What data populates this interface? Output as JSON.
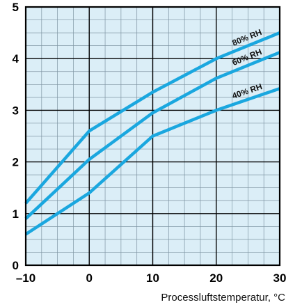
{
  "chart_data": {
    "type": "line",
    "title": "",
    "xlabel": "Processluftstemperatur, °C",
    "ylabel": "",
    "xlim": [
      -10,
      30
    ],
    "ylim": [
      0,
      5
    ],
    "xticks": [
      -10,
      0,
      10,
      20,
      30
    ],
    "yticks": [
      0,
      1,
      2,
      3,
      4,
      5
    ],
    "x_tick_labels": [
      "–10",
      "0",
      "10",
      "20",
      "30"
    ],
    "y_tick_labels": [
      "0",
      "1",
      "2",
      "3",
      "4",
      "5"
    ],
    "grid": true,
    "x_minor_step": 2.5,
    "y_minor_step": 0.25,
    "series": [
      {
        "name": "40% RH",
        "x": [
          -10,
          0,
          10,
          20,
          30
        ],
        "values": [
          0.6,
          1.4,
          2.5,
          3.0,
          3.42
        ]
      },
      {
        "name": "60% RH",
        "x": [
          -10,
          0,
          10,
          20,
          30
        ],
        "values": [
          0.9,
          2.05,
          2.95,
          3.62,
          4.12
        ]
      },
      {
        "name": "80% RH",
        "x": [
          -10,
          0,
          10,
          20,
          30
        ],
        "values": [
          1.2,
          2.6,
          3.35,
          4.0,
          4.5
        ]
      }
    ],
    "colors": {
      "plot_background": "#dbeef7",
      "line": "#1aa7df",
      "grid_major": "#000000",
      "grid_minor": "#7f95a3",
      "frame": "#000000"
    }
  }
}
